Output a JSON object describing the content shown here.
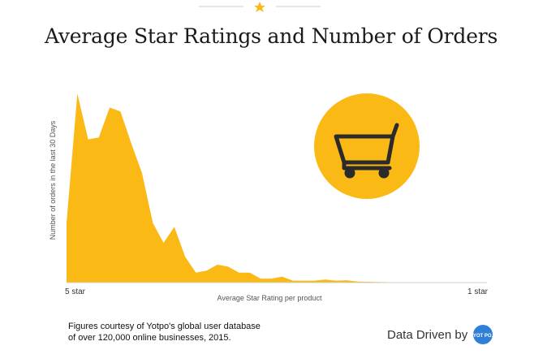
{
  "header": {
    "title": "Average Star Ratings and Number of Orders"
  },
  "chart_data": {
    "type": "area",
    "title": "Average Star Ratings and Number of Orders",
    "xlabel": "Average Star Rating per product",
    "ylabel": "Number of orders in the last 30 Days",
    "x_start_label": "5 star",
    "x_end_label": "1 star",
    "color": "#FBB916",
    "y": [
      30,
      95,
      72,
      73,
      88,
      86,
      70,
      55,
      30,
      20,
      28,
      13,
      5,
      6,
      9,
      8,
      5,
      5,
      2,
      2,
      3,
      1,
      1,
      1,
      1.5,
      1,
      1.2,
      0.5,
      0.4,
      0.3,
      0.2,
      0.1,
      0.1,
      0.1,
      0.05,
      0.05,
      0.05,
      0.02,
      0.02,
      0.02
    ],
    "ylim": [
      0,
      100
    ],
    "grid": false,
    "legend": "none"
  },
  "cart_icon": {
    "name": "shopping-cart-icon",
    "circle_color": "#FBB916",
    "glyph_color": "#2b2b2b"
  },
  "footer": {
    "credit_line1": "Figures courtesy of Yotpo's global user database",
    "credit_line2": "of over 120,000 online businesses, 2015.",
    "brand_text": "Data Driven by",
    "brand_logo_text": "YOT PO.",
    "brand_color": "#2f7fd8"
  },
  "decoration": {
    "star_color": "#FBB916",
    "line_color": "#cccccc"
  }
}
